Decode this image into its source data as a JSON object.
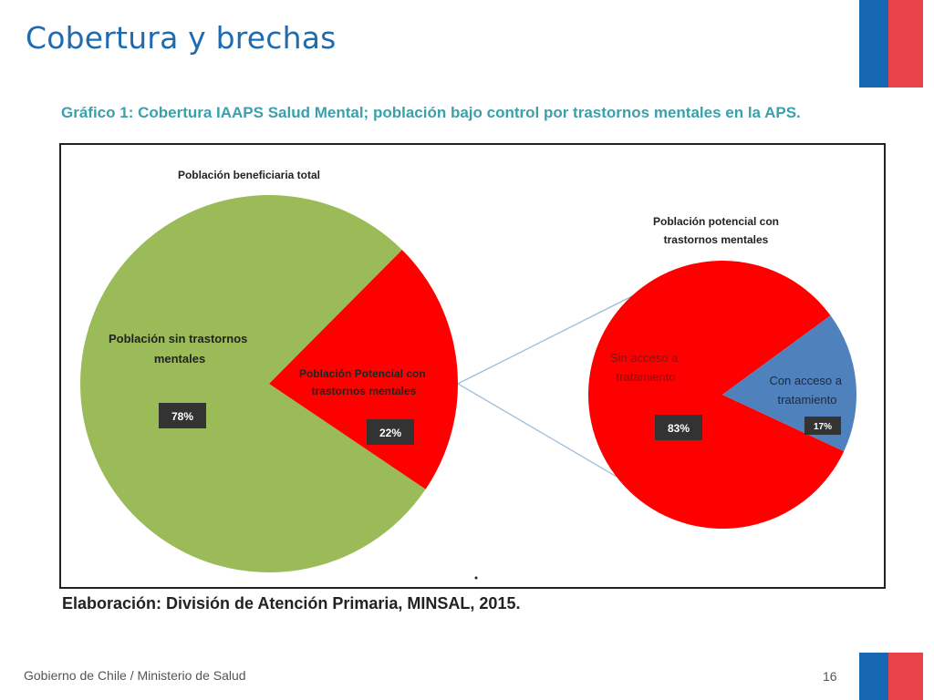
{
  "slide": {
    "title": "Cobertura y brechas",
    "footer": "Gobierno de Chile / Ministerio de Salud",
    "page_number": "16",
    "source_note": "Elaboración: División de Atención Primaria, MINSAL, 2015."
  },
  "colors": {
    "title_blue": "#1f6bb0",
    "flag_blue": "#1668b3",
    "flag_red": "#e8434b",
    "caption_teal": "#3aa0ac",
    "green": "#9bbb59",
    "red": "#ff0000",
    "blue": "#4f81bd",
    "badge": "#333333",
    "connector": "#9fbcd8"
  },
  "chart_data": [
    {
      "type": "pie",
      "title": "Población beneficiaria total",
      "caption": "Gráfico 1: Cobertura IAAPS Salud Mental;  población bajo control por trastornos mentales en la APS.",
      "slices": [
        {
          "label_lines": [
            "Población sin trastornos",
            "mentales"
          ],
          "value": 78,
          "display": "78%",
          "color": "#9bbb59"
        },
        {
          "label_lines": [
            "Población Potencial con",
            "trastornos mentales"
          ],
          "value": 22,
          "display": "22%",
          "color": "#ff0000"
        }
      ]
    },
    {
      "type": "pie",
      "title_lines": [
        "Población potencial con",
        "trastornos mentales"
      ],
      "slices": [
        {
          "label_lines": [
            "Sin  acceso a",
            "tratamiento"
          ],
          "value": 83,
          "display": "83%",
          "color": "#ff0000"
        },
        {
          "label_lines": [
            "Con  acceso a",
            "tratamiento"
          ],
          "value": 17,
          "display": "17%",
          "color": "#4f81bd"
        }
      ]
    }
  ]
}
